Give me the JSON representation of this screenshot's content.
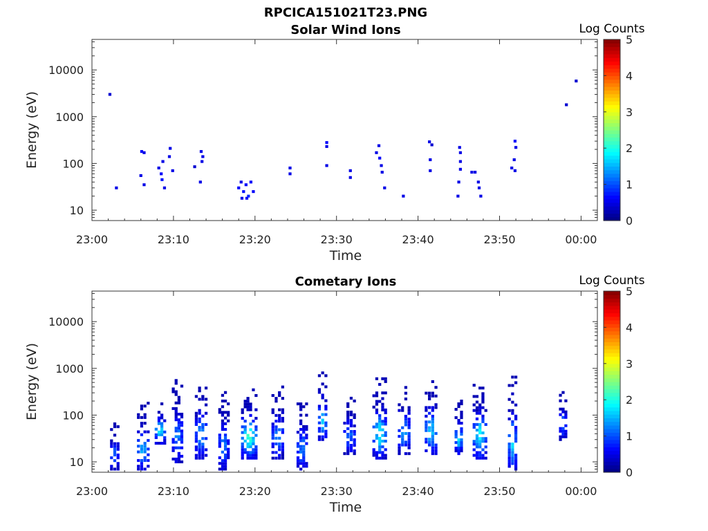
{
  "figure_title": "RPCICA151021T23.PNG",
  "chart_data": [
    {
      "type": "heatmap",
      "title": "Solar Wind Ions",
      "xlabel": "Time",
      "ylabel": "Energy (eV)",
      "x_ticks": [
        "23:00",
        "23:10",
        "23:20",
        "23:30",
        "23:40",
        "23:50",
        "00:00"
      ],
      "xlim_minutes": [
        0,
        62
      ],
      "y_ticks": [
        "10",
        "100",
        "1000",
        "10000"
      ],
      "y_scale": "log",
      "ylim": [
        6,
        45000
      ],
      "colorbar": {
        "label": "Log Counts",
        "range": [
          0,
          5
        ],
        "ticks": [
          "0",
          "1",
          "2",
          "3",
          "4",
          "5"
        ],
        "colormap": "jet"
      },
      "grid": false,
      "cells": [
        [
          2.2,
          3000,
          0.4
        ],
        [
          3.0,
          30,
          0.5
        ],
        [
          6.1,
          180,
          0.6
        ],
        [
          6.4,
          170,
          0.5
        ],
        [
          6.0,
          55,
          0.5
        ],
        [
          6.4,
          35,
          0.5
        ],
        [
          8.2,
          80,
          0.5
        ],
        [
          8.5,
          60,
          0.6
        ],
        [
          8.7,
          110,
          0.5
        ],
        [
          8.6,
          45,
          0.7
        ],
        [
          8.9,
          30,
          0.5
        ],
        [
          9.6,
          210,
          0.5
        ],
        [
          9.5,
          140,
          0.5
        ],
        [
          9.9,
          70,
          0.5
        ],
        [
          12.6,
          85,
          0.4
        ],
        [
          13.4,
          180,
          0.5
        ],
        [
          13.6,
          140,
          0.5
        ],
        [
          13.5,
          110,
          0.5
        ],
        [
          13.3,
          40,
          0.5
        ],
        [
          18.0,
          30,
          0.6
        ],
        [
          18.3,
          40,
          0.5
        ],
        [
          18.6,
          25,
          0.7
        ],
        [
          18.9,
          35,
          0.6
        ],
        [
          19.2,
          20,
          0.8
        ],
        [
          19.5,
          40,
          0.6
        ],
        [
          19.8,
          25,
          0.6
        ],
        [
          18.4,
          18,
          0.5
        ],
        [
          19.0,
          18,
          0.6
        ],
        [
          24.3,
          80,
          0.5
        ],
        [
          24.3,
          60,
          0.5
        ],
        [
          28.8,
          280,
          0.6
        ],
        [
          28.8,
          230,
          0.5
        ],
        [
          28.8,
          90,
          0.5
        ],
        [
          31.7,
          70,
          0.5
        ],
        [
          31.7,
          50,
          0.5
        ],
        [
          34.9,
          170,
          0.5
        ],
        [
          35.3,
          130,
          0.6
        ],
        [
          35.5,
          90,
          0.5
        ],
        [
          35.6,
          65,
          0.5
        ],
        [
          35.2,
          240,
          0.5
        ],
        [
          35.9,
          30,
          0.5
        ],
        [
          38.2,
          20,
          0.5
        ],
        [
          41.4,
          290,
          0.5
        ],
        [
          41.7,
          250,
          0.4
        ],
        [
          41.5,
          120,
          0.5
        ],
        [
          41.5,
          70,
          0.5
        ],
        [
          45.1,
          220,
          0.5
        ],
        [
          45.2,
          170,
          0.5
        ],
        [
          45.2,
          110,
          0.5
        ],
        [
          45.2,
          75,
          0.5
        ],
        [
          45.0,
          40,
          0.5
        ],
        [
          44.9,
          20,
          0.5
        ],
        [
          46.6,
          65,
          0.5
        ],
        [
          47.0,
          65,
          0.5
        ],
        [
          47.4,
          40,
          0.5
        ],
        [
          47.5,
          30,
          0.5
        ],
        [
          47.7,
          20,
          0.5
        ],
        [
          51.5,
          80,
          0.5
        ],
        [
          51.9,
          70,
          0.5
        ],
        [
          51.9,
          300,
          0.6
        ],
        [
          52.0,
          220,
          0.5
        ],
        [
          51.8,
          120,
          0.5
        ],
        [
          58.2,
          1800,
          0.4
        ],
        [
          59.4,
          5800,
          0.4
        ]
      ]
    },
    {
      "type": "heatmap",
      "title": "Cometary Ions",
      "xlabel": "Time",
      "ylabel": "Energy (eV)",
      "x_ticks": [
        "23:00",
        "23:10",
        "23:20",
        "23:30",
        "23:40",
        "23:50",
        "00:00"
      ],
      "xlim_minutes": [
        0,
        62
      ],
      "y_ticks": [
        "10",
        "100",
        "1000",
        "10000"
      ],
      "y_scale": "log",
      "ylim": [
        6,
        45000
      ],
      "colorbar": {
        "label": "Log Counts",
        "range": [
          0,
          5
        ],
        "ticks": [
          "0",
          "1",
          "2",
          "3",
          "4",
          "5"
        ],
        "colormap": "jet"
      },
      "grid": false,
      "bursts": [
        {
          "t": 2.8,
          "w": 1.2,
          "lo": 7,
          "hi": 65,
          "peak": 1.0
        },
        {
          "t": 6.3,
          "w": 1.6,
          "lo": 7,
          "hi": 180,
          "peak": 1.5
        },
        {
          "t": 8.4,
          "w": 1.4,
          "lo": 25,
          "hi": 200,
          "peak": 1.8
        },
        {
          "t": 10.5,
          "w": 1.4,
          "lo": 10,
          "hi": 550,
          "peak": 1.2
        },
        {
          "t": 13.4,
          "w": 1.6,
          "lo": 12,
          "hi": 500,
          "peak": 1.3
        },
        {
          "t": 16.2,
          "w": 1.4,
          "lo": 7,
          "hi": 350,
          "peak": 1.1
        },
        {
          "t": 19.3,
          "w": 2.0,
          "lo": 12,
          "hi": 400,
          "peak": 2.1
        },
        {
          "t": 22.8,
          "w": 1.6,
          "lo": 12,
          "hi": 400,
          "peak": 1.2
        },
        {
          "t": 25.8,
          "w": 1.4,
          "lo": 7,
          "hi": 200,
          "peak": 1.2
        },
        {
          "t": 28.3,
          "w": 1.2,
          "lo": 30,
          "hi": 800,
          "peak": 1.5
        },
        {
          "t": 31.6,
          "w": 1.6,
          "lo": 15,
          "hi": 230,
          "peak": 1.1
        },
        {
          "t": 35.3,
          "w": 1.8,
          "lo": 12,
          "hi": 600,
          "peak": 1.8
        },
        {
          "t": 38.3,
          "w": 1.6,
          "lo": 15,
          "hi": 450,
          "peak": 1.3
        },
        {
          "t": 41.6,
          "w": 1.6,
          "lo": 15,
          "hi": 600,
          "peak": 1.6
        },
        {
          "t": 45.0,
          "w": 1.0,
          "lo": 15,
          "hi": 200,
          "peak": 1.6
        },
        {
          "t": 47.6,
          "w": 1.8,
          "lo": 12,
          "hi": 500,
          "peak": 1.7
        },
        {
          "t": 51.6,
          "w": 1.2,
          "lo": 7,
          "hi": 650,
          "peak": 1.5
        },
        {
          "t": 57.8,
          "w": 1.0,
          "lo": 30,
          "hi": 400,
          "peak": 0.9
        }
      ]
    }
  ]
}
